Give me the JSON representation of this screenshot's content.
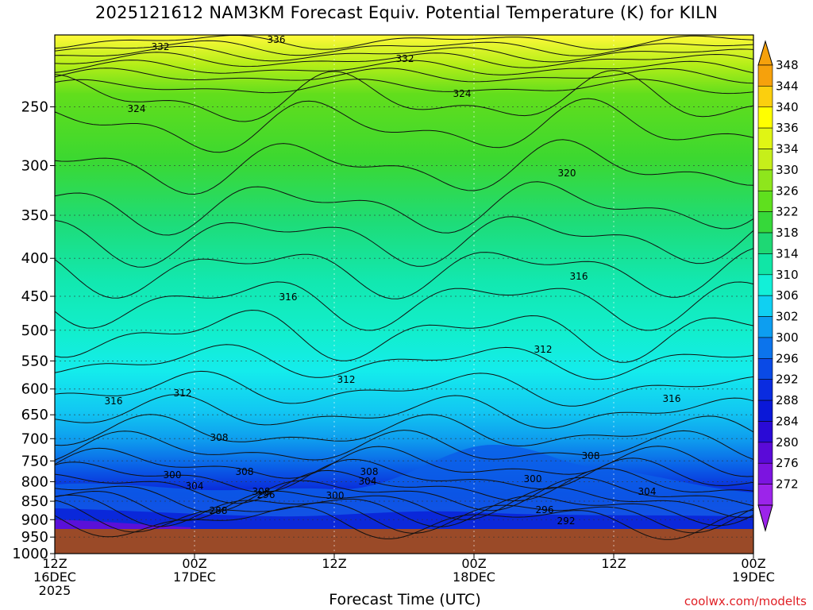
{
  "chart_data": {
    "type": "heatmap",
    "title": "2025121612 NAM3KM Forecast Equiv. Potential Temperature (K) for KILN",
    "xlabel": "Forecast Time (UTC)",
    "y_axis": {
      "type": "pressure",
      "inverted": true,
      "range": [
        200,
        1000
      ],
      "ticks": [
        "250",
        "300",
        "350",
        "400",
        "450",
        "500",
        "550",
        "600",
        "650",
        "700",
        "750",
        "800",
        "850",
        "900",
        "950",
        "1000"
      ]
    },
    "x_axis": {
      "range": [
        "2025-12-16T12:00Z",
        "2025-12-19T00:00Z"
      ],
      "ticks": [
        {
          "t": "2025-12-16T12:00Z",
          "lines": [
            "12Z",
            "16DEC",
            "2025"
          ]
        },
        {
          "t": "2025-12-17T00:00Z",
          "lines": [
            "00Z",
            "17DEC"
          ]
        },
        {
          "t": "2025-12-17T12:00Z",
          "lines": [
            "12Z"
          ]
        },
        {
          "t": "2025-12-18T00:00Z",
          "lines": [
            "00Z",
            "18DEC"
          ]
        },
        {
          "t": "2025-12-18T12:00Z",
          "lines": [
            "12Z"
          ]
        },
        {
          "t": "2025-12-19T00:00Z",
          "lines": [
            "00Z",
            "19DEC"
          ]
        }
      ]
    },
    "colorbar": {
      "labels": [
        "348",
        "344",
        "340",
        "336",
        "334",
        "330",
        "326",
        "322",
        "318",
        "314",
        "310",
        "306",
        "302",
        "300",
        "296",
        "292",
        "288",
        "284",
        "280",
        "276",
        "272"
      ],
      "colors": [
        "#f6a10c",
        "#fbcf0e",
        "#ffff00",
        "#e0f514",
        "#c6ef1a",
        "#8ee61c",
        "#5fe01e",
        "#36d83a",
        "#1ed874",
        "#10e6a6",
        "#12f0d8",
        "#10d0f2",
        "#0d9ef0",
        "#0c74ec",
        "#0a4ae6",
        "#0a2ce0",
        "#0a18d8",
        "#2a0ad6",
        "#5a0ad8",
        "#7c14e0",
        "#9c24ea"
      ]
    },
    "contour_labels": [
      "336",
      "332",
      "332",
      "324",
      "324",
      "320",
      "316",
      "316",
      "316",
      "316",
      "312",
      "312",
      "312",
      "308",
      "308",
      "308",
      "308",
      "308",
      "304",
      "304",
      "304",
      "300",
      "300",
      "300",
      "296",
      "296",
      "292",
      "288"
    ],
    "grid": true,
    "ground_color": "#9a4a28"
  },
  "footer": {
    "credit": "coolwx.com/modelts"
  }
}
